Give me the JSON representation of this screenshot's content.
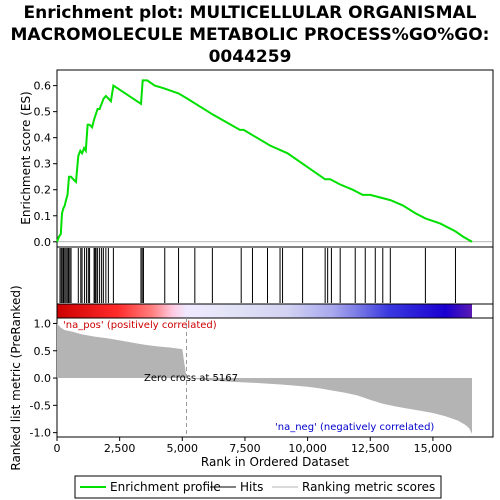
{
  "chart_data": {
    "type": "line",
    "title": "Enrichment plot: MULTICELLULAR ORGANISMAL MACROMOLECULE METABOLIC PROCESS%GO%GO:0044259",
    "title_lines": [
      "Enrichment plot: MULTICELLULAR ORGANISMAL",
      "MACROMOLECULE METABOLIC PROCESS%GO%GO:",
      "0044259"
    ],
    "xlabel": "Rank in Ordered Dataset",
    "top_panel": {
      "ylabel": "Enrichment score (ES)",
      "ylim": [
        -0.02,
        0.66
      ],
      "yticks": [
        "0.0",
        "0.1",
        "0.2",
        "0.3",
        "0.4",
        "0.5",
        "0.6"
      ],
      "series": [
        {
          "name": "Enrichment profile",
          "color": "#00e000",
          "x": [
            0,
            80,
            150,
            200,
            260,
            310,
            360,
            420,
            480,
            560,
            650,
            760,
            850,
            930,
            1000,
            1080,
            1150,
            1220,
            1300,
            1400,
            1480,
            1550,
            1620,
            1700,
            1780,
            1860,
            1950,
            2050,
            2150,
            2250,
            3350,
            3420,
            3600,
            3900,
            4250,
            4550,
            4850,
            5200,
            6200,
            7300,
            7450,
            8500,
            9200,
            9800,
            10700,
            10900,
            11300,
            11800,
            12200,
            12500,
            12900,
            13300,
            13800,
            14300,
            14700,
            15300,
            15900,
            16200,
            16560
          ],
          "y": [
            0.0,
            0.02,
            0.03,
            0.11,
            0.13,
            0.14,
            0.16,
            0.18,
            0.25,
            0.25,
            0.24,
            0.23,
            0.33,
            0.35,
            0.34,
            0.36,
            0.35,
            0.45,
            0.45,
            0.44,
            0.47,
            0.49,
            0.51,
            0.51,
            0.53,
            0.55,
            0.56,
            0.55,
            0.54,
            0.6,
            0.53,
            0.62,
            0.62,
            0.6,
            0.59,
            0.58,
            0.57,
            0.55,
            0.49,
            0.43,
            0.43,
            0.37,
            0.34,
            0.3,
            0.24,
            0.24,
            0.22,
            0.2,
            0.18,
            0.18,
            0.17,
            0.16,
            0.14,
            0.11,
            0.09,
            0.07,
            0.04,
            0.02,
            0.0
          ]
        }
      ]
    },
    "hits": [
      120,
      170,
      210,
      260,
      310,
      360,
      410,
      460,
      510,
      560,
      850,
      950,
      1000,
      1100,
      1180,
      1250,
      1300,
      1480,
      1520,
      1560,
      1620,
      1700,
      1780,
      1850,
      1950,
      2050,
      2250,
      3350,
      3400,
      3450,
      4300,
      4850,
      5500,
      6200,
      7350,
      7800,
      8400,
      8900,
      9000,
      9800,
      10700,
      10800,
      10950,
      11300,
      11900,
      12300,
      12700,
      13000,
      13300,
      14700,
      15900
    ],
    "color_bar": {
      "stops": [
        {
          "rank": 0,
          "color": "#cc0000"
        },
        {
          "rank": 2400,
          "color": "#ff2a2a"
        },
        {
          "rank": 3800,
          "color": "#ff7f7f"
        },
        {
          "rank": 4600,
          "color": "#ffc8e0"
        },
        {
          "rank": 5167,
          "color": "#f0e8ff"
        },
        {
          "rank": 6500,
          "color": "#e6e6f8"
        },
        {
          "rank": 9200,
          "color": "#d2d2f2"
        },
        {
          "rank": 11000,
          "color": "#a8a8ee"
        },
        {
          "rank": 12000,
          "color": "#7a7ae6"
        },
        {
          "rank": 13200,
          "color": "#3a3ae0"
        },
        {
          "rank": 15500,
          "color": "#1a00d0"
        },
        {
          "rank": 16560,
          "color": "#5a1ab4"
        }
      ]
    },
    "bottom_panel": {
      "ylabel": "Ranked list metric (PreRanked)",
      "ylim": [
        -1.08,
        1.1
      ],
      "yticks": [
        "1.0",
        "0.5",
        "0.0",
        "-0.5",
        "-1.0"
      ],
      "x": [
        0,
        150,
        300,
        600,
        1000,
        1500,
        2000,
        2500,
        3000,
        3500,
        4000,
        4500,
        5000,
        5167,
        5400,
        6000,
        7000,
        8000,
        9000,
        10000,
        10500,
        11000,
        11500,
        12000,
        12500,
        13000,
        13500,
        14000,
        14500,
        15000,
        15500,
        16000,
        16300,
        16450,
        16560
      ],
      "y": [
        1.0,
        0.92,
        0.88,
        0.85,
        0.8,
        0.76,
        0.73,
        0.69,
        0.65,
        0.61,
        0.58,
        0.56,
        0.53,
        0.0,
        -0.01,
        -0.04,
        -0.07,
        -0.09,
        -0.12,
        -0.16,
        -0.19,
        -0.23,
        -0.27,
        -0.32,
        -0.4,
        -0.47,
        -0.52,
        -0.56,
        -0.6,
        -0.64,
        -0.7,
        -0.78,
        -0.86,
        -0.92,
        -1.02
      ],
      "pos_label": "'na_pos' (positively correlated)",
      "neg_label": "'na_neg' (negatively correlated)",
      "zero_cross_label": "Zero cross at 5167",
      "zero_cross": 5167
    },
    "xlim": [
      0,
      16560
    ],
    "xticks": [
      {
        "value": 0,
        "label": "0"
      },
      {
        "value": 2500,
        "label": "2,500"
      },
      {
        "value": 5000,
        "label": "5,000"
      },
      {
        "value": 7500,
        "label": "7,500"
      },
      {
        "value": 10000,
        "label": "10,000"
      },
      {
        "value": 12500,
        "label": "12,500"
      },
      {
        "value": 15000,
        "label": "15,000"
      }
    ],
    "legend": {
      "placement": "bottom",
      "items": [
        {
          "label": "Enrichment profile",
          "color": "#00e000"
        },
        {
          "label": "Hits",
          "color": "#000000"
        },
        {
          "label": "Ranking metric scores",
          "color": "#b4b4b4"
        }
      ]
    }
  }
}
